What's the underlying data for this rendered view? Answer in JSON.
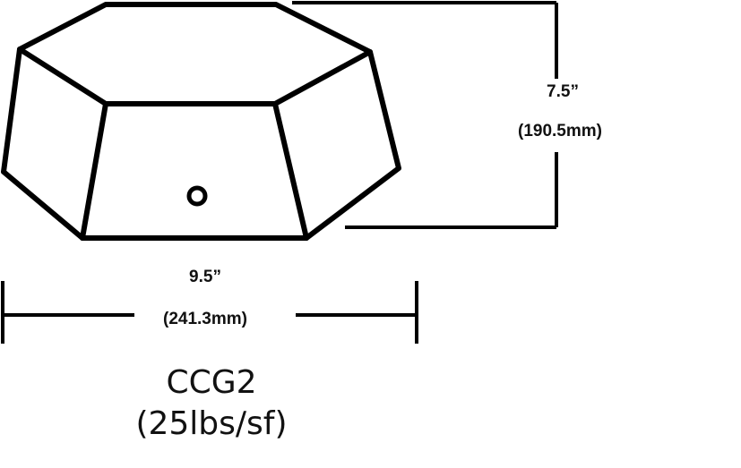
{
  "dimensions": {
    "height_in": "7.5”",
    "height_mm": "(190.5mm)",
    "width_in": "9.5”",
    "width_mm": "(241.3mm)"
  },
  "product": {
    "model": "CCG2",
    "load_rating": "(25lbs/sf)"
  },
  "colors": {
    "line": "#000000",
    "background": "#ffffff"
  }
}
